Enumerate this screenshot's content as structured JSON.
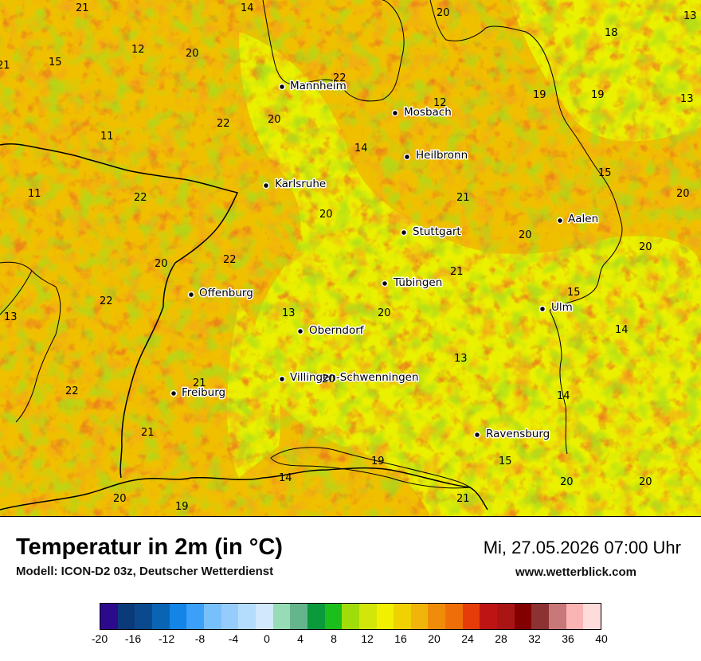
{
  "map": {
    "cities": [
      {
        "name": "Mannheim"
      },
      {
        "name": "Mosbach"
      },
      {
        "name": "Heilbronn"
      },
      {
        "name": "Karlsruhe"
      },
      {
        "name": "Aalen"
      },
      {
        "name": "Stuttgart"
      },
      {
        "name": "Tübingen"
      },
      {
        "name": "Offenburg"
      },
      {
        "name": "Ulm"
      },
      {
        "name": "Oberndorf"
      },
      {
        "name": "Villingen-Schwenningen"
      },
      {
        "name": "Freiburg"
      },
      {
        "name": "Ravensburg"
      }
    ],
    "values": [
      "21",
      "14",
      "20",
      "13",
      "18",
      "21",
      "22",
      "12",
      "20",
      "15",
      "12",
      "19",
      "19",
      "13",
      "20",
      "22",
      "11",
      "14",
      "15",
      "22",
      "11",
      "21",
      "20",
      "20",
      "20",
      "22",
      "20",
      "21",
      "15",
      "22",
      "20",
      "13",
      "13",
      "14",
      "20",
      "13",
      "21",
      "20",
      "14",
      "22",
      "21",
      "19",
      "15",
      "14",
      "19",
      "20",
      "20",
      "21",
      "20"
    ],
    "palette": {
      "base": "#f0c000",
      "warm": "#f2a818",
      "hot": "#ea7e1c",
      "cool": "#eaf000",
      "green": "#a8dc1c",
      "border": "#000000"
    }
  },
  "footer": {
    "title": "Temperatur in 2m (in °C)",
    "subtitle": "Modell: ICON-D2 03z, Deutscher Wetterdienst",
    "datetime": "Mi, 27.05.2026 07:00 Uhr",
    "site": "www.wetterblick.com"
  },
  "colorbar": {
    "colors": [
      "#2c0a8c",
      "#0a3a7a",
      "#0a4a8c",
      "#0a64b4",
      "#1484e6",
      "#3ca0f8",
      "#78c0fc",
      "#96ccfc",
      "#b4dcfc",
      "#d2e8fc",
      "#96dcb4",
      "#64b48c",
      "#0a9a3c",
      "#1cbe1c",
      "#a0dc0a",
      "#d2e60a",
      "#f0f000",
      "#f0d200",
      "#f0b40a",
      "#f08c0a",
      "#f06e0a",
      "#e63c0a",
      "#be1414",
      "#aa1414",
      "#820000",
      "#8c3232",
      "#c87878",
      "#fab4b4",
      "#ffdcdc"
    ],
    "ticks": [
      "-20",
      "-16",
      "-12",
      "-8",
      "-4",
      "0",
      "4",
      "8",
      "12",
      "16",
      "20",
      "24",
      "28",
      "32",
      "36",
      "40"
    ]
  }
}
